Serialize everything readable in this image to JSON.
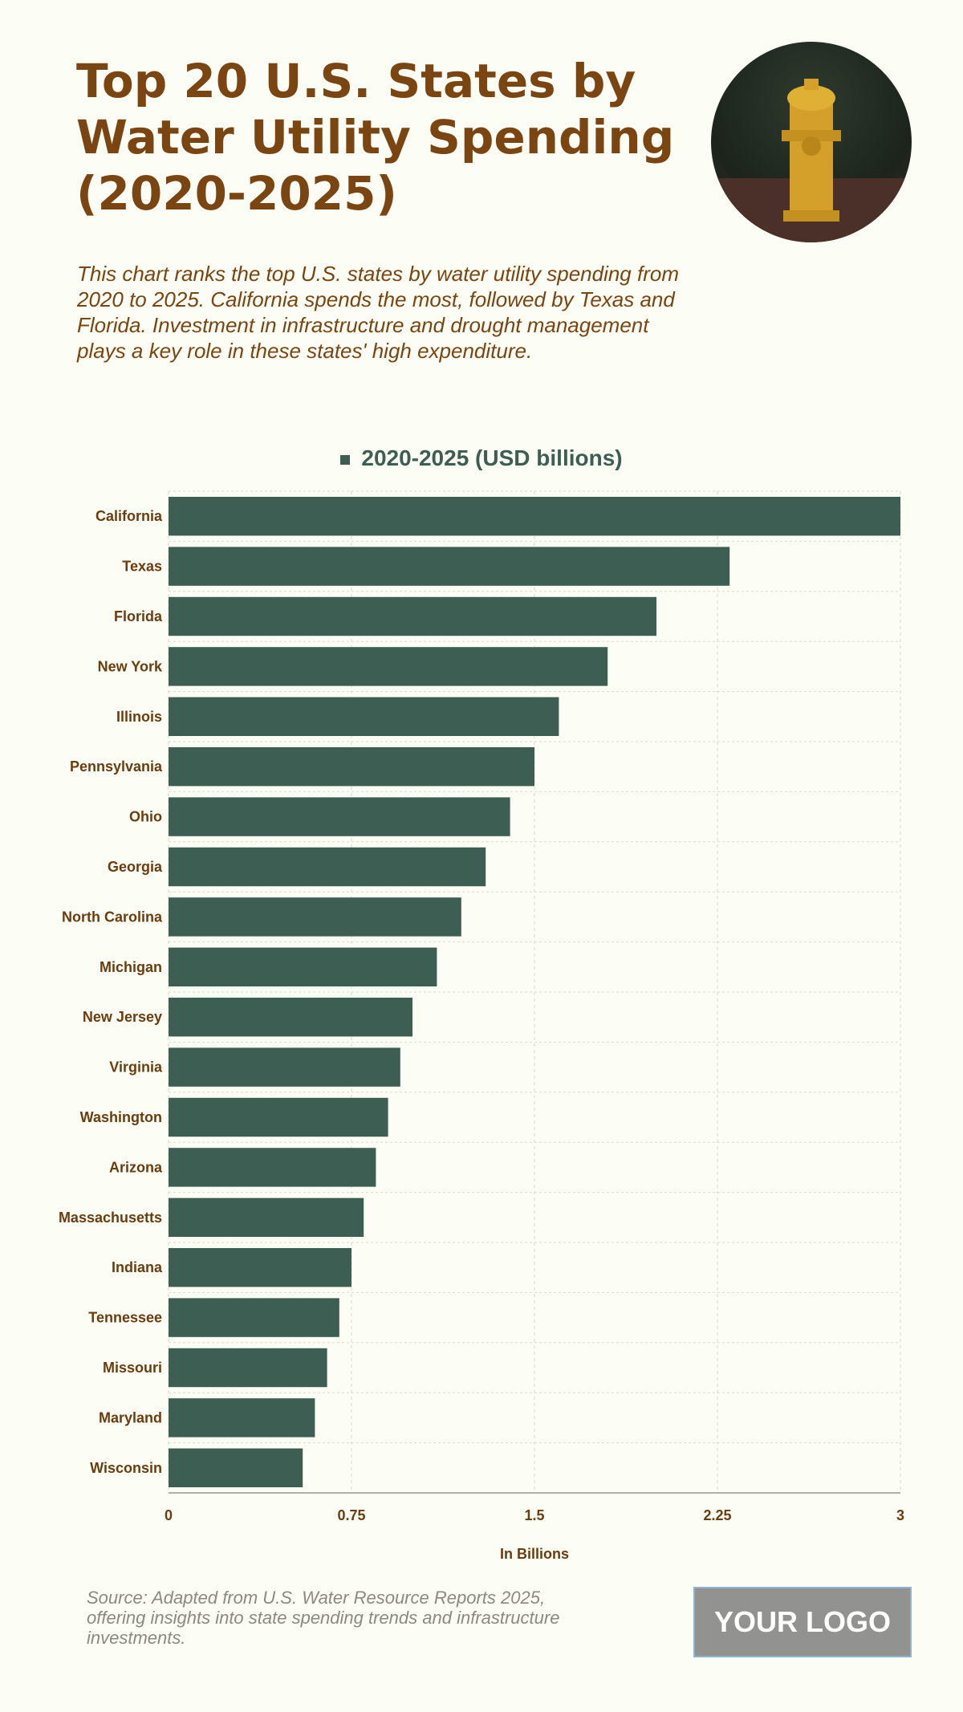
{
  "header": {
    "title": "Top 20 U.S. States by Water Utility Spending (2020-2025)",
    "description": "This chart ranks the top U.S. states by water utility spending from 2020 to 2025. California spends the most, followed by Texas and Florida. Investment in infrastructure and drought management plays a key role in these states' high expenditure."
  },
  "image": {
    "icon": "fire-hydrant-photo"
  },
  "chart_data": {
    "type": "bar",
    "orientation": "horizontal",
    "categories": [
      "California",
      "Texas",
      "Florida",
      "New York",
      "Illinois",
      "Pennsylvania",
      "Ohio",
      "Georgia",
      "North Carolina",
      "Michigan",
      "New Jersey",
      "Virginia",
      "Washington",
      "Arizona",
      "Massachusetts",
      "Indiana",
      "Tennessee",
      "Missouri",
      "Maryland",
      "Wisconsin"
    ],
    "series": [
      {
        "name": "2020-2025 (USD billions)",
        "values": [
          3.0,
          2.3,
          2.0,
          1.8,
          1.6,
          1.5,
          1.4,
          1.3,
          1.2,
          1.1,
          1.0,
          0.95,
          0.9,
          0.85,
          0.8,
          0.75,
          0.7,
          0.65,
          0.6,
          0.55
        ],
        "color": "#3d5e52"
      }
    ],
    "xlabel": "In Billions",
    "xlim": [
      0,
      3
    ],
    "xticks": [
      "0",
      "0.75",
      "1.5",
      "2.25",
      "3"
    ],
    "grid": true,
    "legend_position": "top-center"
  },
  "footer": {
    "source": "Source: Adapted from U.S. Water Resource Reports 2025, offering insights into state spending trends and infrastructure investments.",
    "logo": "YOUR LOGO"
  }
}
